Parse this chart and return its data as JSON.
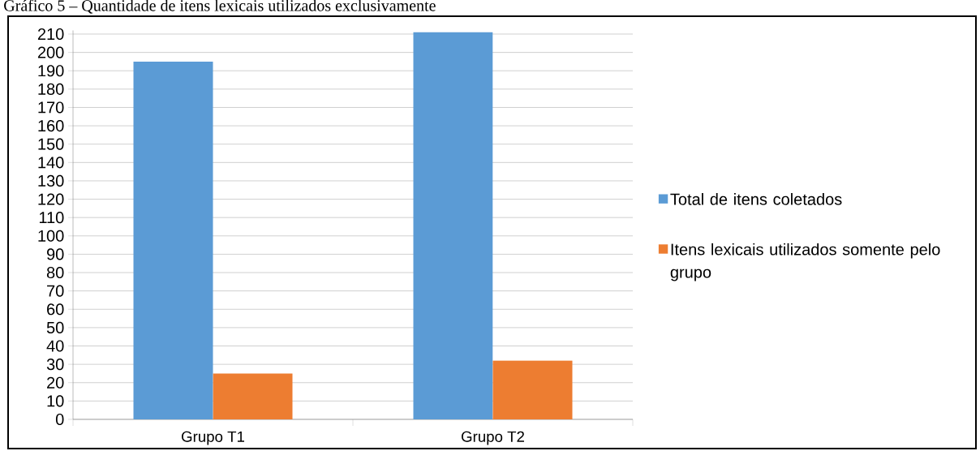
{
  "chart_data": {
    "type": "bar",
    "title": "Gráfico 5 – Quantidade de itens lexicais utilizados exclusivamente",
    "categories": [
      "Grupo T1",
      "Grupo T2"
    ],
    "series": [
      {
        "name": "Total de itens coletados",
        "color": "#5b9bd5",
        "values": [
          195,
          211
        ]
      },
      {
        "name": "Itens lexicais utilizados somente pelo grupo",
        "color": "#ed7d31",
        "values": [
          25,
          32
        ]
      }
    ],
    "ylim": [
      0,
      212
    ],
    "yticks": [
      0,
      10,
      20,
      30,
      40,
      50,
      60,
      70,
      80,
      90,
      100,
      110,
      120,
      130,
      140,
      150,
      160,
      170,
      180,
      190,
      200,
      210
    ],
    "grid": "y",
    "legend": "right"
  }
}
